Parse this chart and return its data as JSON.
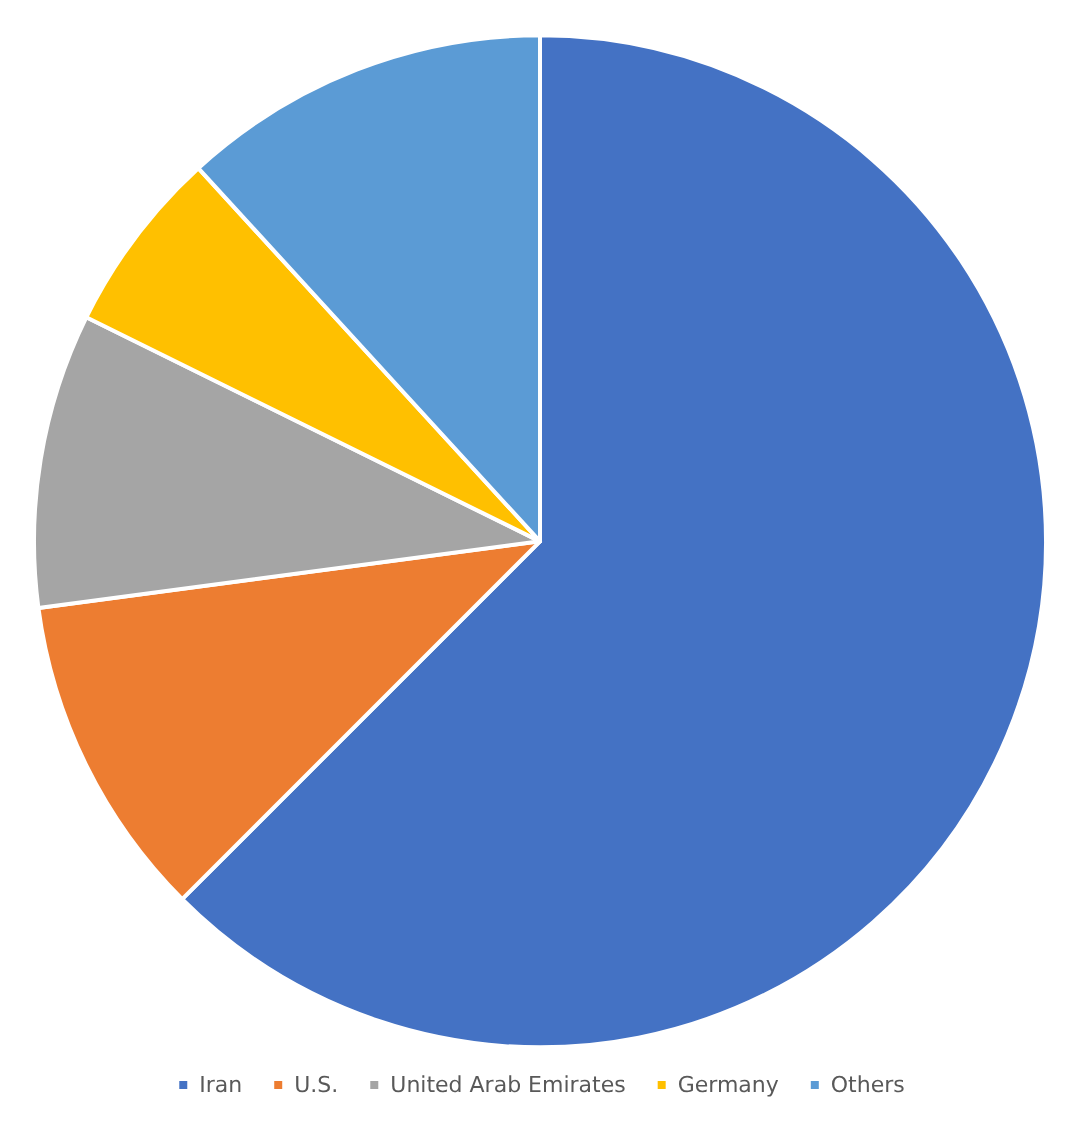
{
  "chart_data": {
    "type": "pie",
    "categories": [
      "Iran",
      "U.S.",
      "United Arab Emirates",
      "Germany",
      "Others"
    ],
    "values": [
      62.5,
      10.4,
      9.4,
      5.9,
      11.8
    ],
    "colors": [
      "#4472c4",
      "#ed7d31",
      "#a5a5a5",
      "#ffc000",
      "#5b9bd5"
    ],
    "legend": "bottom"
  }
}
